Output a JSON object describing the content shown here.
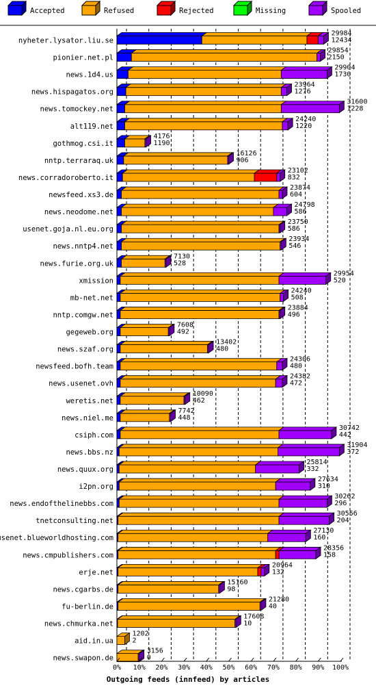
{
  "chart_data": {
    "type": "bar",
    "orientation": "horizontal",
    "stacked": true,
    "title": "Outgoing feeds (innfeed) by articles",
    "legend_position": "top",
    "xlim": [
      0,
      100
    ],
    "x_ticks": [
      "0%",
      "10%",
      "20%",
      "30%",
      "40%",
      "50%",
      "60%",
      "70%",
      "80%",
      "90%",
      "100%"
    ],
    "grid": true,
    "series": [
      {
        "name": "Accepted",
        "color": "#0000ff",
        "key": "accepted"
      },
      {
        "name": "Refused",
        "color": "#ffa500",
        "key": "refused"
      },
      {
        "name": "Rejected",
        "color": "#ff0000",
        "key": "rejected"
      },
      {
        "name": "Missing",
        "color": "#00ff00",
        "key": "missing"
      },
      {
        "name": "Spooled",
        "color": "#a000ff",
        "key": "spooled"
      }
    ],
    "rows": [
      {
        "host": "nyheter.lysator.liu.se",
        "total": "29984",
        "accepted_count": "12434",
        "accepted": 38,
        "refused": 47,
        "rejected": 5,
        "missing": 0,
        "spooled": 2.5
      },
      {
        "host": "pionier.net.pl",
        "total": "29854",
        "accepted_count": "2150",
        "accepted": 6.5,
        "refused": 83,
        "rejected": 0,
        "missing": 0,
        "spooled": 1.5
      },
      {
        "host": "news.1d4.us",
        "total": "29904",
        "accepted_count": "1730",
        "accepted": 5,
        "refused": 68.5,
        "rejected": 0,
        "missing": 0,
        "spooled": 20.5
      },
      {
        "host": "news.hispagatos.org",
        "total": "23964",
        "accepted_count": "1276",
        "accepted": 4,
        "refused": 69.5,
        "rejected": 0,
        "missing": 0,
        "spooled": 2.5
      },
      {
        "host": "news.tomockey.net",
        "total": "31600",
        "accepted_count": "1228",
        "accepted": 3.5,
        "refused": 70,
        "rejected": 0,
        "missing": 0,
        "spooled": 26
      },
      {
        "host": "alt119.net",
        "total": "24240",
        "accepted_count": "1220",
        "accepted": 3.5,
        "refused": 70.5,
        "rejected": 0,
        "missing": 0,
        "spooled": 2.5
      },
      {
        "host": "gothmog.csi.it",
        "total": "4176",
        "accepted_count": "1190",
        "accepted": 3.5,
        "refused": 9,
        "rejected": 0,
        "missing": 0,
        "spooled": 0.5
      },
      {
        "host": "nntp.terraraq.uk",
        "total": "16126",
        "accepted_count": "906",
        "accepted": 3,
        "refused": 46.5,
        "rejected": 0,
        "missing": 0,
        "spooled": 0.5
      },
      {
        "host": "news.corradoroberto.it",
        "total": "23102",
        "accepted_count": "832",
        "accepted": 2.5,
        "refused": 59,
        "rejected": 10,
        "missing": 0,
        "spooled": 1.5
      },
      {
        "host": "newsfeed.xs3.de",
        "total": "23874",
        "accepted_count": "604",
        "accepted": 2,
        "refused": 70.5,
        "rejected": 0,
        "missing": 0,
        "spooled": 1.5
      },
      {
        "host": "news.neodome.net",
        "total": "24798",
        "accepted_count": "586",
        "accepted": 2,
        "refused": 68,
        "rejected": 0,
        "missing": 0,
        "spooled": 6
      },
      {
        "host": "usenet.goja.nl.eu.org",
        "total": "23750",
        "accepted_count": "586",
        "accepted": 2,
        "refused": 70.5,
        "rejected": 0,
        "missing": 0,
        "spooled": 0.5
      },
      {
        "host": "news.nntp4.net",
        "total": "23934",
        "accepted_count": "546",
        "accepted": 2,
        "refused": 71,
        "rejected": 0,
        "missing": 0,
        "spooled": 0.5
      },
      {
        "host": "news.furie.org.uk",
        "total": "7130",
        "accepted_count": "528",
        "accepted": 2,
        "refused": 19.5,
        "rejected": 0,
        "missing": 0,
        "spooled": 0.5
      },
      {
        "host": "xmission",
        "total": "29954",
        "accepted_count": "520",
        "accepted": 1.5,
        "refused": 71,
        "rejected": 0,
        "missing": 0,
        "spooled": 21
      },
      {
        "host": "mb-net.net",
        "total": "24240",
        "accepted_count": "508",
        "accepted": 1.5,
        "refused": 71.5,
        "rejected": 0,
        "missing": 0,
        "spooled": 1.5
      },
      {
        "host": "nntp.comgw.net",
        "total": "23884",
        "accepted_count": "496",
        "accepted": 1.5,
        "refused": 71,
        "rejected": 0,
        "missing": 0,
        "spooled": 0.5
      },
      {
        "host": "gegeweb.org",
        "total": "7608",
        "accepted_count": "492",
        "accepted": 1.5,
        "refused": 21.5,
        "rejected": 0,
        "missing": 0,
        "spooled": 0.5
      },
      {
        "host": "news.szaf.org",
        "total": "13402",
        "accepted_count": "480",
        "accepted": 1.5,
        "refused": 39,
        "rejected": 0,
        "missing": 0,
        "spooled": 0.5
      },
      {
        "host": "newsfeed.bofh.team",
        "total": "24306",
        "accepted_count": "480",
        "accepted": 1.5,
        "refused": 70,
        "rejected": 0,
        "missing": 0,
        "spooled": 2.5
      },
      {
        "host": "news.usenet.ovh",
        "total": "24382",
        "accepted_count": "472",
        "accepted": 1.5,
        "refused": 69.5,
        "rejected": 0,
        "missing": 0,
        "spooled": 3
      },
      {
        "host": "weretis.net",
        "total": "10090",
        "accepted_count": "462",
        "accepted": 1.5,
        "refused": 28.5,
        "rejected": 0,
        "missing": 0,
        "spooled": 0.5
      },
      {
        "host": "news.niel.me",
        "total": "7742",
        "accepted_count": "448",
        "accepted": 1.5,
        "refused": 22,
        "rejected": 0,
        "missing": 0,
        "spooled": 0.5
      },
      {
        "host": "csiph.com",
        "total": "30742",
        "accepted_count": "442",
        "accepted": 1.5,
        "refused": 71,
        "rejected": 0,
        "missing": 0,
        "spooled": 23.5
      },
      {
        "host": "news.bbs.nz",
        "total": "31904",
        "accepted_count": "372",
        "accepted": 1,
        "refused": 71,
        "rejected": 0,
        "missing": 0,
        "spooled": 27.5
      },
      {
        "host": "news.quux.org",
        "total": "25814",
        "accepted_count": "332",
        "accepted": 1,
        "refused": 61,
        "rejected": 0,
        "missing": 0,
        "spooled": 19.5
      },
      {
        "host": "i2pn.org",
        "total": "27634",
        "accepted_count": "310",
        "accepted": 1,
        "refused": 70,
        "rejected": 0,
        "missing": 0,
        "spooled": 15.5
      },
      {
        "host": "news.endofthelinebbs.com",
        "total": "30262",
        "accepted_count": "296",
        "accepted": 1,
        "refused": 71.5,
        "rejected": 0,
        "missing": 0,
        "spooled": 21.5
      },
      {
        "host": "tnetconsulting.net",
        "total": "30556",
        "accepted_count": "204",
        "accepted": 0.5,
        "refused": 72,
        "rejected": 0,
        "missing": 0,
        "spooled": 22.5
      },
      {
        "host": "usenet.blueworldhosting.com",
        "total": "27130",
        "accepted_count": "160",
        "accepted": 0.5,
        "refused": 67,
        "rejected": 0,
        "missing": 0,
        "spooled": 17
      },
      {
        "host": "news.cmpublishers.com",
        "total": "28356",
        "accepted_count": "158",
        "accepted": 0.5,
        "refused": 70.5,
        "rejected": 1.5,
        "missing": 0,
        "spooled": 16.5
      },
      {
        "host": "erje.net",
        "total": "20964",
        "accepted_count": "132",
        "accepted": 0.5,
        "refused": 62.5,
        "rejected": 1.5,
        "missing": 0,
        "spooled": 1.5
      },
      {
        "host": "news.cgarbs.de",
        "total": "15160",
        "accepted_count": "98",
        "accepted": 0.5,
        "refused": 45,
        "rejected": 0,
        "missing": 0,
        "spooled": 0.5
      },
      {
        "host": "fu-berlin.de",
        "total": "21280",
        "accepted_count": "40",
        "accepted": 0.5,
        "refused": 63.5,
        "rejected": 0,
        "missing": 0,
        "spooled": 0.5
      },
      {
        "host": "news.chmurka.net",
        "total": "17608",
        "accepted_count": "10",
        "accepted": 0.3,
        "refused": 52.5,
        "rejected": 0,
        "missing": 0,
        "spooled": 0.5
      },
      {
        "host": "aid.in.ua",
        "total": "1202",
        "accepted_count": "2",
        "accepted": 0,
        "refused": 3.5,
        "rejected": 0,
        "missing": 0,
        "spooled": 0
      },
      {
        "host": "news.swapon.de",
        "total": "3156",
        "accepted_count": "0",
        "accepted": 0,
        "refused": 9.5,
        "rejected": 0,
        "missing": 0,
        "spooled": 0.5
      }
    ]
  }
}
